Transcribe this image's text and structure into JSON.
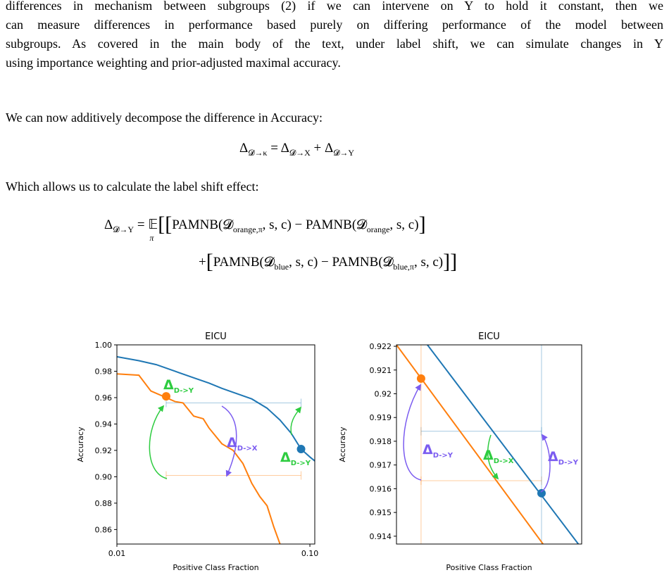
{
  "paragraph_1": [
    "differences in mechanism between subgroups (2) if we can intervene on Y to hold it constant, then we",
    "can measure differences in performance based purely on differing performance of the model between",
    "subgroups. As covered in the main body of the text, under label shift, we can simulate changes in Y",
    "using importance weighting and prior-adjusted maximal accuracy."
  ],
  "paragraph_2": "We can now additively decompose the difference in Accuracy:",
  "equation_1": [
    {
      "text": "Δ"
    },
    {
      "sub": "𝓓→κ"
    },
    {
      "text": " = Δ"
    },
    {
      "sub": "𝓓→X"
    },
    {
      "text": " + Δ"
    },
    {
      "sub": "𝓓→Y"
    }
  ],
  "paragraph_3": "Which allows us to calculate the label shift effect:",
  "equation_2": {
    "line_1": [
      {
        "text": "Δ"
      },
      {
        "sub": "𝓓→Y"
      },
      {
        "text": " = "
      },
      {
        "text": "𝔼",
        "under": "π"
      },
      {
        "big": "["
      },
      {
        "big": "["
      },
      {
        "text": "PAMNB(𝓓"
      },
      {
        "sub": "orange,π"
      },
      {
        "text": ", s, c) − PAMNB(𝓓"
      },
      {
        "sub": "orange"
      },
      {
        "text": ", s, c)"
      },
      {
        "big": "]"
      }
    ],
    "line_2": [
      {
        "text": "+"
      },
      {
        "big": "["
      },
      {
        "text": "PAMNB(𝓓"
      },
      {
        "sub": "blue"
      },
      {
        "text": ", s, c) − PAMNB(𝓓"
      },
      {
        "sub": "blue,π"
      },
      {
        "text": ", s, c)"
      },
      {
        "big": "]"
      },
      {
        "big": "]"
      }
    ]
  },
  "chart_data": [
    {
      "type": "line",
      "title": "EICU",
      "xlabel": "Positive Class Fraction",
      "ylabel": "Accuracy",
      "xscale": "log",
      "xlim": [
        0.01,
        0.106
      ],
      "ylim": [
        0.849,
        1.0
      ],
      "xticks": [
        0.01,
        {
          "value": 0.1,
          "label": "0.10"
        }
      ],
      "yticks": [
        {
          "value": 1,
          "label": "1.00"
        },
        0.98,
        0.96,
        0.94,
        0.92,
        {
          "value": 0.9,
          "label": "0.90"
        },
        0.88,
        0.86
      ],
      "series": [
        {
          "color": "#1f77b4",
          "x": [
            0.01,
            0.013,
            0.016,
            0.02,
            0.025,
            0.03,
            0.035,
            0.04,
            0.05,
            0.06,
            0.07,
            0.08,
            0.09,
            0.1,
            0.106
          ],
          "values": [
            0.991,
            0.988,
            0.985,
            0.98,
            0.975,
            0.971,
            0.967,
            0.964,
            0.959,
            0.952,
            0.943,
            0.933,
            0.921,
            0.915,
            0.912
          ]
        },
        {
          "color": "#ff7f0e",
          "x": [
            0.01,
            0.013,
            0.015,
            0.018,
            0.02,
            0.022,
            0.025,
            0.028,
            0.03,
            0.035,
            0.04,
            0.045,
            0.05,
            0.055,
            0.06,
            0.065,
            0.07
          ],
          "values": [
            0.978,
            0.977,
            0.965,
            0.96,
            0.957,
            0.956,
            0.946,
            0.944,
            0.937,
            0.925,
            0.92,
            0.91,
            0.895,
            0.885,
            0.878,
            0.862,
            0.849
          ]
        }
      ],
      "points": [
        {
          "x": 0.018,
          "y": 0.961,
          "color": "#ff7f0e"
        },
        {
          "x": 0.09,
          "y": 0.921,
          "color": "#1f77b4"
        }
      ],
      "hlines": [
        {
          "y": 0.956,
          "x": [
            0.018,
            0.09
          ],
          "color": "#1f77b4"
        },
        {
          "y": 0.901,
          "x": [
            0.018,
            0.09
          ],
          "color": "#ff7f0e"
        }
      ],
      "vlines": [],
      "annotations": [
        {
          "text": "Δ",
          "sub": "D->Y",
          "color": "#2ecc40"
        },
        {
          "text": "Δ",
          "sub": "D->X",
          "color": "#7b5cf0"
        },
        {
          "text": "Δ",
          "sub": "D->Y",
          "color": "#2ecc40"
        }
      ]
    },
    {
      "type": "line",
      "title": "EICU",
      "xlabel": "Positive Class Fraction",
      "ylabel": "Accuracy",
      "xscale": "linear",
      "xlim": [
        0.0033,
        0.114
      ],
      "ylim": [
        0.91367,
        0.92206
      ],
      "yticks": [
        0.922,
        0.921,
        0.92,
        0.919,
        0.918,
        0.917,
        0.916,
        0.915,
        0.914
      ],
      "series": [
        {
          "color": "#1f77b4",
          "x": [
            0.0218,
            0.112
          ],
          "values": [
            0.92206,
            0.91367
          ]
        },
        {
          "color": "#ff7f0e",
          "x": [
            0.0033,
            0.0909
          ],
          "values": [
            0.92206,
            0.91367
          ]
        }
      ],
      "points": [
        {
          "x": 0.018,
          "y": 0.92064,
          "color": "#ff7f0e"
        },
        {
          "x": 0.09,
          "y": 0.91581,
          "color": "#1f77b4"
        }
      ],
      "hlines": [
        {
          "y": 0.91842,
          "x": [
            0.018,
            0.09
          ],
          "color": "#1f77b4"
        },
        {
          "y": 0.91634,
          "x": [
            0.018,
            0.09
          ],
          "color": "#ff7f0e"
        }
      ],
      "vlines": [
        {
          "x": 0.018,
          "color": "#ff7f0e"
        },
        {
          "x": 0.09,
          "color": "#1f77b4"
        }
      ],
      "annotations": [
        {
          "text": "Δ",
          "sub": "D->Y",
          "color": "#7b5cf0"
        },
        {
          "text": "Δ",
          "sub": "D->X",
          "color": "#2ecc40"
        },
        {
          "text": "Δ",
          "sub": "D->Y",
          "color": "#7b5cf0"
        }
      ]
    }
  ]
}
